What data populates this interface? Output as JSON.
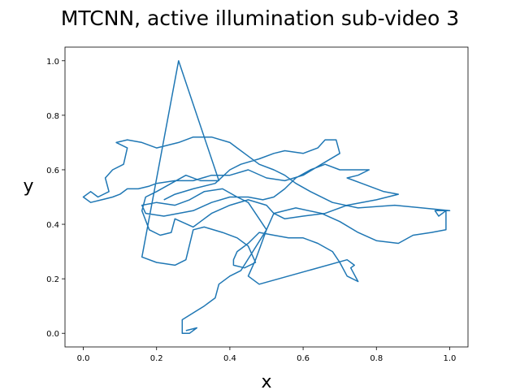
{
  "chart_data": {
    "type": "line",
    "title": "MTCNN, active illumination sub-video 3",
    "x_label": "x",
    "y_label": "y",
    "color": "#1f77b4",
    "xlim": [
      -0.05,
      1.05
    ],
    "ylim": [
      -0.05,
      1.05
    ],
    "xticks": [
      {
        "value": 0,
        "label": "0.0"
      },
      0.2,
      0.4,
      0.6,
      0.8,
      {
        "value": 1,
        "label": "1.0"
      }
    ],
    "yticks": [
      {
        "value": 0,
        "label": "0.0"
      },
      0.2,
      0.4,
      0.6,
      0.8,
      {
        "value": 1,
        "label": "1.0"
      }
    ],
    "x": [
      0.28,
      0.31,
      0.29,
      0.27,
      0.27,
      0.33,
      0.36,
      0.37,
      0.4,
      0.43,
      0.5,
      0.48,
      0.45,
      0.42,
      0.38,
      0.33,
      0.29,
      0.25,
      0.2,
      0.16,
      0.17,
      0.22,
      0.26,
      0.3,
      0.35,
      0.4,
      0.45,
      0.49,
      0.52,
      0.55,
      0.58,
      0.62,
      0.66,
      0.7,
      0.75,
      0.78,
      0.75,
      0.72,
      0.76,
      0.82,
      0.86,
      0.8,
      0.72,
      0.66,
      0.6,
      0.55,
      0.52,
      0.5,
      0.45,
      0.4,
      0.35,
      0.32,
      0.3,
      0.25,
      0.24,
      0.21,
      0.18,
      0.16,
      0.17,
      0.2,
      0.24,
      0.28,
      0.32,
      0.37,
      0.26,
      0.16,
      0.2,
      0.25,
      0.28,
      0.3,
      0.33,
      0.38,
      0.42,
      0.45,
      0.47,
      0.44,
      0.41,
      0.41,
      0.42,
      0.45,
      0.48,
      0.52,
      0.56,
      0.6,
      0.64,
      0.68,
      0.7,
      0.72,
      0.75,
      0.73,
      0.74,
      0.72,
      0.48,
      0.45,
      0.47,
      0.5,
      0.52,
      0.58,
      0.65,
      0.7,
      0.75,
      0.8,
      0.86,
      0.9,
      0.95,
      0.99,
      0.99,
      0.97,
      0.96,
      1.0,
      0.85,
      0.75,
      0.68,
      0.62,
      0.58,
      0.55,
      0.52,
      0.48,
      0.45,
      0.42,
      0.4,
      0.35,
      0.3,
      0.26,
      0.2,
      0.16,
      0.12,
      0.09,
      0.12,
      0.11,
      0.08,
      0.06,
      0.07,
      0.04,
      0.02,
      0.0,
      0.02,
      0.05,
      0.08,
      0.1,
      0.12,
      0.15,
      0.18,
      0.2,
      0.25,
      0.3,
      0.35,
      0.4,
      0.45,
      0.5,
      0.55,
      0.6,
      0.65,
      0.7,
      0.69,
      0.66,
      0.64,
      0.6,
      0.55,
      0.52,
      0.48,
      0.43,
      0.4,
      0.36,
      0.3,
      0.25,
      0.22
    ],
    "values": [
      0.01,
      0.02,
      0.0,
      0.0,
      0.05,
      0.1,
      0.13,
      0.18,
      0.21,
      0.23,
      0.38,
      0.42,
      0.48,
      0.5,
      0.53,
      0.52,
      0.49,
      0.47,
      0.48,
      0.47,
      0.44,
      0.43,
      0.44,
      0.45,
      0.48,
      0.5,
      0.5,
      0.49,
      0.5,
      0.53,
      0.57,
      0.6,
      0.62,
      0.6,
      0.6,
      0.6,
      0.58,
      0.57,
      0.55,
      0.52,
      0.51,
      0.49,
      0.47,
      0.44,
      0.43,
      0.42,
      0.44,
      0.47,
      0.49,
      0.47,
      0.44,
      0.41,
      0.39,
      0.42,
      0.37,
      0.36,
      0.38,
      0.45,
      0.5,
      0.52,
      0.55,
      0.58,
      0.56,
      0.56,
      1.0,
      0.28,
      0.26,
      0.25,
      0.27,
      0.38,
      0.39,
      0.37,
      0.35,
      0.32,
      0.26,
      0.24,
      0.25,
      0.27,
      0.3,
      0.33,
      0.37,
      0.36,
      0.35,
      0.35,
      0.33,
      0.3,
      0.26,
      0.21,
      0.19,
      0.24,
      0.25,
      0.27,
      0.18,
      0.21,
      0.27,
      0.38,
      0.44,
      0.46,
      0.44,
      0.41,
      0.37,
      0.34,
      0.33,
      0.36,
      0.37,
      0.38,
      0.45,
      0.43,
      0.45,
      0.45,
      0.47,
      0.46,
      0.48,
      0.52,
      0.55,
      0.58,
      0.6,
      0.62,
      0.65,
      0.68,
      0.7,
      0.72,
      0.72,
      0.7,
      0.68,
      0.7,
      0.71,
      0.7,
      0.68,
      0.62,
      0.6,
      0.57,
      0.52,
      0.5,
      0.52,
      0.5,
      0.48,
      0.49,
      0.5,
      0.51,
      0.53,
      0.53,
      0.54,
      0.55,
      0.56,
      0.56,
      0.58,
      0.58,
      0.6,
      0.57,
      0.56,
      0.58,
      0.62,
      0.66,
      0.71,
      0.71,
      0.68,
      0.66,
      0.67,
      0.66,
      0.64,
      0.62,
      0.6,
      0.55,
      0.53,
      0.51,
      0.49
    ]
  }
}
